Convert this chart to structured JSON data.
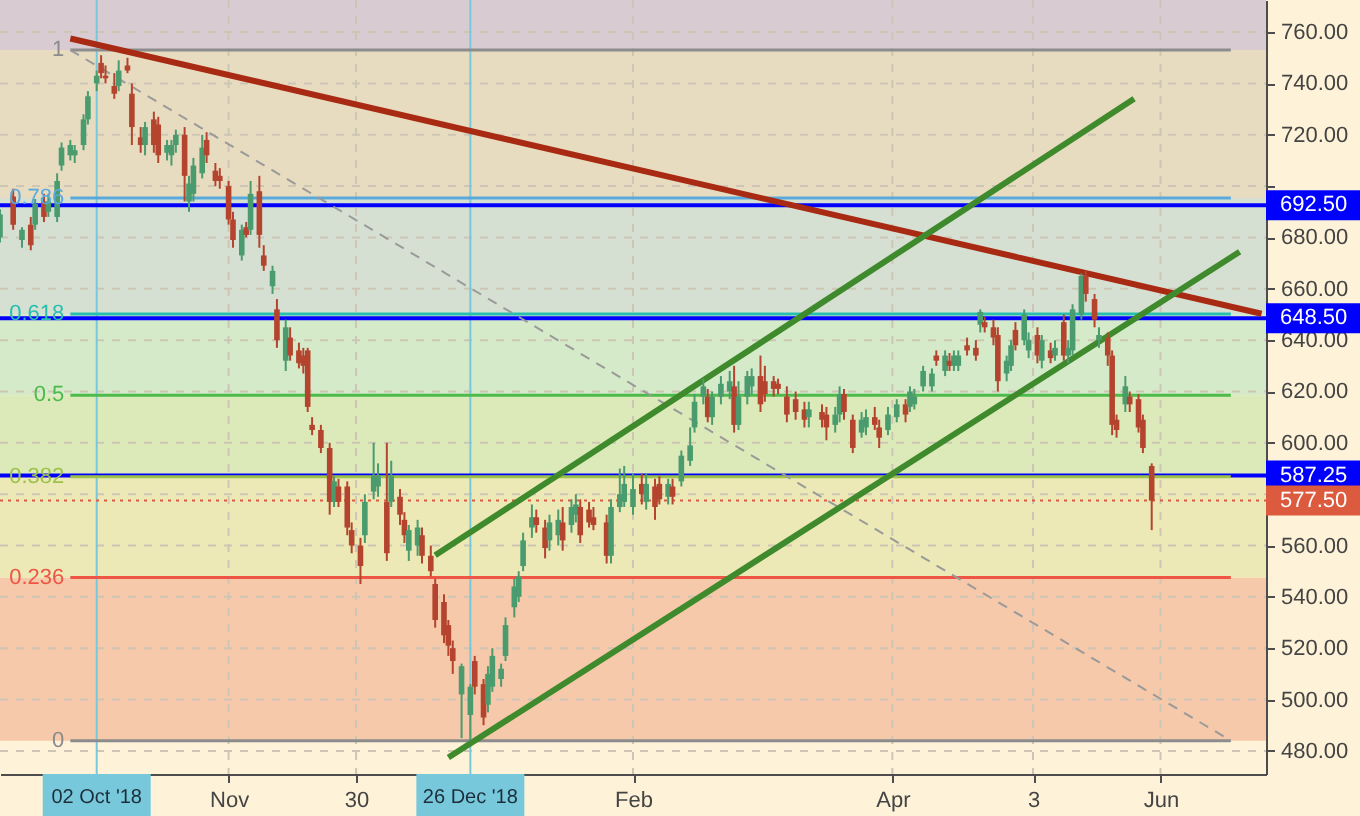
{
  "chart_data": {
    "type": "candlestick",
    "x": [
      "2018-09-10",
      "2018-09-13",
      "2018-09-15",
      "2018-09-17",
      "2018-09-18",
      "2018-09-20",
      "2018-09-21",
      "2018-09-23",
      "2018-09-24",
      "2018-09-26",
      "2018-09-27",
      "2018-09-29",
      "2018-09-30",
      "2018-10-02",
      "2018-10-03",
      "2018-10-04",
      "2018-10-06",
      "2018-10-07",
      "2018-10-09",
      "2018-10-10",
      "2018-10-12",
      "2018-10-13",
      "2018-10-15",
      "2018-10-16",
      "2018-10-18",
      "2018-10-19",
      "2018-10-20",
      "2018-10-22",
      "2018-10-23",
      "2018-10-24",
      "2018-10-26",
      "2018-10-27",
      "2018-10-29",
      "2018-10-30",
      "2018-11-01",
      "2018-11-02",
      "2018-11-04",
      "2018-11-05",
      "2018-11-06",
      "2018-11-08",
      "2018-11-09",
      "2018-11-11",
      "2018-11-12",
      "2018-11-14",
      "2018-11-15",
      "2018-11-17",
      "2018-11-18",
      "2018-11-19",
      "2018-11-20",
      "2018-11-22",
      "2018-11-24",
      "2018-11-25",
      "2018-11-26",
      "2018-11-28",
      "2018-11-29",
      "2018-12-01",
      "2018-12-02",
      "2018-12-04",
      "2018-12-05",
      "2018-12-07",
      "2018-12-08",
      "2018-12-10",
      "2018-12-11",
      "2018-12-12",
      "2018-12-14",
      "2018-12-15",
      "2018-12-17",
      "2018-12-18",
      "2018-12-20",
      "2018-12-21",
      "2018-12-22",
      "2018-12-24",
      "2018-12-26",
      "2018-12-27",
      "2018-12-29",
      "2018-12-30",
      "2018-12-31",
      "2019-01-02",
      "2019-01-03",
      "2019-01-05",
      "2019-01-06",
      "2019-01-07",
      "2019-01-09",
      "2019-01-10",
      "2019-01-12",
      "2019-01-13",
      "2019-01-15",
      "2019-01-16",
      "2019-01-18",
      "2019-01-19",
      "2019-01-20",
      "2019-01-22",
      "2019-01-23",
      "2019-01-26",
      "2019-01-27",
      "2019-01-29",
      "2019-01-30",
      "2019-02-01",
      "2019-02-03",
      "2019-02-04",
      "2019-02-06",
      "2019-02-07",
      "2019-02-09",
      "2019-02-10",
      "2019-02-12",
      "2019-02-14",
      "2019-02-15",
      "2019-02-17",
      "2019-02-18",
      "2019-02-19",
      "2019-02-21",
      "2019-02-23",
      "2019-02-24",
      "2019-02-25",
      "2019-02-27",
      "2019-02-28",
      "2019-03-02",
      "2019-03-03",
      "2019-03-05",
      "2019-03-06",
      "2019-03-08",
      "2019-03-10",
      "2019-03-12",
      "2019-03-13",
      "2019-03-16",
      "2019-03-17",
      "2019-03-19",
      "2019-03-20",
      "2019-03-21",
      "2019-03-23",
      "2019-03-25",
      "2019-03-26",
      "2019-03-28",
      "2019-03-29",
      "2019-03-31",
      "2019-04-02",
      "2019-04-04",
      "2019-04-05",
      "2019-04-06",
      "2019-04-08",
      "2019-04-10",
      "2019-04-11",
      "2019-04-13",
      "2019-04-14",
      "2019-04-15",
      "2019-04-16",
      "2019-04-18",
      "2019-04-20",
      "2019-04-21",
      "2019-04-22",
      "2019-04-24",
      "2019-04-25",
      "2019-04-27",
      "2019-04-28",
      "2019-04-29",
      "2019-05-01",
      "2019-05-02",
      "2019-05-04",
      "2019-05-05",
      "2019-05-07",
      "2019-05-08",
      "2019-05-10",
      "2019-05-11",
      "2019-05-12",
      "2019-05-14",
      "2019-05-15",
      "2019-05-17",
      "2019-05-18",
      "2019-05-20",
      "2019-05-21",
      "2019-05-22",
      "2019-05-24",
      "2019-05-25",
      "2019-05-27",
      "2019-05-28",
      "2019-05-30"
    ],
    "ohlc": [
      [
        680,
        691,
        678,
        689
      ],
      [
        696,
        699,
        683,
        685
      ],
      [
        679,
        684,
        676,
        683
      ],
      [
        685,
        688,
        675,
        677
      ],
      [
        685,
        695,
        683,
        693
      ],
      [
        694,
        697,
        686,
        688
      ],
      [
        690,
        697,
        688,
        694
      ],
      [
        688,
        705,
        686,
        702
      ],
      [
        708,
        717,
        706,
        715
      ],
      [
        712,
        718,
        710,
        716
      ],
      [
        712,
        716,
        709,
        714
      ],
      [
        716,
        728,
        714,
        726
      ],
      [
        726,
        737,
        724,
        735
      ],
      [
        740,
        745,
        737,
        743
      ],
      [
        748,
        751,
        742,
        744
      ],
      [
        743,
        747,
        740,
        742
      ],
      [
        739,
        744,
        734,
        736
      ],
      [
        739,
        749,
        737,
        745
      ],
      [
        747,
        750,
        744,
        745
      ],
      [
        736,
        740,
        716,
        723
      ],
      [
        719,
        723,
        713,
        716
      ],
      [
        716,
        725,
        712,
        723
      ],
      [
        726,
        729,
        713,
        716
      ],
      [
        724,
        727,
        709,
        712
      ],
      [
        713,
        718,
        710,
        716
      ],
      [
        712,
        718,
        708,
        716
      ],
      [
        716,
        722,
        713,
        720
      ],
      [
        720,
        723,
        694,
        704
      ],
      [
        694,
        704,
        690,
        701
      ],
      [
        697,
        711,
        694,
        708
      ],
      [
        705,
        720,
        703,
        715
      ],
      [
        718,
        721,
        709,
        712
      ],
      [
        706,
        709,
        700,
        702
      ],
      [
        704,
        707,
        699,
        702
      ],
      [
        700,
        702,
        685,
        687
      ],
      [
        687,
        690,
        676,
        679
      ],
      [
        673,
        685,
        671,
        683
      ],
      [
        684,
        686,
        680,
        681
      ],
      [
        683,
        702,
        681,
        697
      ],
      [
        698,
        704,
        676,
        681
      ],
      [
        673,
        677,
        667,
        669
      ],
      [
        661,
        669,
        658,
        667
      ],
      [
        652,
        656,
        637,
        640
      ],
      [
        632,
        648,
        628,
        645
      ],
      [
        641,
        645,
        632,
        634
      ],
      [
        636,
        639,
        629,
        631
      ],
      [
        634,
        637,
        627,
        630
      ],
      [
        636,
        637,
        612,
        614
      ],
      [
        607,
        610,
        603,
        605
      ],
      [
        605,
        607,
        596,
        598
      ],
      [
        598,
        600,
        572,
        577
      ],
      [
        577,
        587,
        575,
        585
      ],
      [
        583,
        586,
        575,
        577
      ],
      [
        583,
        585,
        564,
        567
      ],
      [
        566,
        569,
        557,
        560
      ],
      [
        560,
        563,
        545,
        552
      ],
      [
        564,
        580,
        561,
        577
      ],
      [
        581,
        600,
        578,
        587
      ],
      [
        583,
        592,
        579,
        587
      ],
      [
        577,
        600,
        554,
        557
      ],
      [
        577,
        593,
        575,
        587
      ],
      [
        579,
        582,
        568,
        572
      ],
      [
        570,
        573,
        561,
        564
      ],
      [
        558,
        568,
        554,
        566
      ],
      [
        560,
        570,
        556,
        567
      ],
      [
        564,
        567,
        553,
        556
      ],
      [
        556,
        560,
        548,
        550
      ],
      [
        545,
        547,
        528,
        531
      ],
      [
        538,
        541,
        522,
        525
      ],
      [
        529,
        531,
        517,
        521
      ],
      [
        520,
        523,
        510,
        515
      ],
      [
        502,
        514,
        485,
        513
      ],
      [
        494,
        506,
        484,
        505
      ],
      [
        515,
        517,
        502,
        505
      ],
      [
        506,
        508,
        490,
        493
      ],
      [
        498,
        513,
        495,
        510
      ],
      [
        505,
        520,
        503,
        517
      ],
      [
        508,
        514,
        505,
        512
      ],
      [
        517,
        532,
        515,
        529
      ],
      [
        536,
        547,
        532,
        544
      ],
      [
        540,
        550,
        538,
        548
      ],
      [
        552,
        565,
        550,
        562
      ],
      [
        567,
        576,
        563,
        571
      ],
      [
        571,
        574,
        565,
        568
      ],
      [
        567,
        570,
        555,
        559
      ],
      [
        562,
        572,
        558,
        569
      ],
      [
        564,
        574,
        560,
        570
      ],
      [
        569,
        575,
        558,
        562
      ],
      [
        568,
        578,
        565,
        575
      ],
      [
        572,
        580,
        569,
        576
      ],
      [
        575,
        578,
        561,
        564
      ],
      [
        574,
        577,
        567,
        569
      ],
      [
        571,
        575,
        566,
        568
      ],
      [
        569,
        572,
        553,
        556
      ],
      [
        556,
        578,
        553,
        575
      ],
      [
        575,
        590,
        573,
        580
      ],
      [
        577,
        591,
        575,
        584
      ],
      [
        575,
        588,
        572,
        582
      ],
      [
        584,
        588,
        576,
        580
      ],
      [
        577,
        588,
        574,
        584
      ],
      [
        583,
        586,
        570,
        575
      ],
      [
        584,
        587,
        576,
        578
      ],
      [
        579,
        586,
        576,
        584
      ],
      [
        583,
        586,
        576,
        579
      ],
      [
        585,
        597,
        583,
        595
      ],
      [
        593,
        606,
        591,
        599
      ],
      [
        606,
        619,
        604,
        616
      ],
      [
        618,
        625,
        615,
        622
      ],
      [
        618,
        621,
        608,
        610
      ],
      [
        610,
        620,
        607,
        618
      ],
      [
        618,
        626,
        615,
        623
      ],
      [
        620,
        628,
        617,
        624
      ],
      [
        622,
        630,
        604,
        607
      ],
      [
        607,
        624,
        605,
        618
      ],
      [
        618,
        628,
        615,
        626
      ],
      [
        622,
        629,
        619,
        626
      ],
      [
        626,
        634,
        612,
        615
      ],
      [
        624,
        630,
        616,
        619
      ],
      [
        624,
        626,
        618,
        621
      ],
      [
        623,
        625,
        619,
        621
      ],
      [
        618,
        622,
        608,
        611
      ],
      [
        617,
        620,
        609,
        612
      ],
      [
        613,
        616,
        606,
        609
      ],
      [
        610,
        616,
        606,
        613
      ],
      [
        612,
        615,
        606,
        609
      ],
      [
        611,
        614,
        601,
        606
      ],
      [
        607,
        614,
        604,
        611
      ],
      [
        611,
        622,
        608,
        619
      ],
      [
        619,
        621,
        609,
        612
      ],
      [
        609,
        611,
        596,
        598
      ],
      [
        604,
        612,
        602,
        609
      ],
      [
        606,
        613,
        603,
        610
      ],
      [
        610,
        614,
        605,
        607
      ],
      [
        606,
        609,
        598,
        602
      ],
      [
        605,
        614,
        603,
        611
      ],
      [
        610,
        617,
        608,
        615
      ],
      [
        615,
        617,
        608,
        611
      ],
      [
        614,
        622,
        612,
        620
      ],
      [
        615,
        621,
        613,
        618
      ],
      [
        622,
        630,
        620,
        628
      ],
      [
        622,
        629,
        620,
        627
      ],
      [
        634,
        636,
        630,
        632
      ],
      [
        628,
        636,
        626,
        634
      ],
      [
        632,
        635,
        628,
        630
      ],
      [
        630,
        636,
        628,
        634
      ],
      [
        630,
        636,
        628,
        634
      ],
      [
        638,
        641,
        634,
        636
      ],
      [
        637,
        640,
        632,
        634
      ],
      [
        646,
        652,
        643,
        651
      ],
      [
        647,
        649,
        643,
        645
      ],
      [
        645,
        648,
        638,
        641
      ],
      [
        642,
        645,
        620,
        624
      ],
      [
        627,
        634,
        624,
        632
      ],
      [
        630,
        640,
        628,
        638
      ],
      [
        644,
        647,
        636,
        638
      ],
      [
        640,
        652,
        638,
        650
      ],
      [
        636,
        643,
        633,
        640
      ],
      [
        642,
        645,
        631,
        634
      ],
      [
        632,
        642,
        629,
        640
      ],
      [
        636,
        639,
        631,
        633
      ],
      [
        634,
        640,
        632,
        637
      ],
      [
        647,
        650,
        632,
        634
      ],
      [
        634,
        640,
        631,
        637
      ],
      [
        636,
        654,
        634,
        652
      ],
      [
        650,
        666,
        648,
        665
      ],
      [
        665,
        667,
        655,
        658
      ],
      [
        656,
        658,
        645,
        648
      ],
      [
        640,
        645,
        637,
        642
      ],
      [
        641,
        643,
        630,
        634
      ],
      [
        634,
        636,
        603,
        607
      ],
      [
        609,
        611,
        602,
        605
      ],
      [
        615,
        626,
        612,
        622
      ],
      [
        618,
        620,
        612,
        615
      ],
      [
        617,
        619,
        604,
        606
      ],
      [
        609,
        611,
        596,
        598
      ],
      [
        591,
        592,
        566,
        577.5
      ]
    ],
    "colors": [
      "#4a9b6e",
      "#b4442e",
      "#4a9b6e",
      "#b4442e",
      "#4a9b6e",
      "#b4442e",
      "#4a9b6e",
      "#4a9b6e",
      "#4a9b6e",
      "#4a9b6e",
      "#4a9b6e",
      "#4a9b6e",
      "#4a9b6e",
      "#4a9b6e",
      "#b4442e",
      "#b4442e",
      "#b4442e",
      "#4a9b6e",
      "#b4442e",
      "#b4442e",
      "#b4442e",
      "#4a9b6e",
      "#b4442e",
      "#b4442e",
      "#4a9b6e",
      "#4a9b6e",
      "#4a9b6e",
      "#b4442e",
      "#4a9b6e",
      "#4a9b6e",
      "#4a9b6e",
      "#b4442e",
      "#b4442e",
      "#b4442e",
      "#b4442e",
      "#b4442e",
      "#4a9b6e",
      "#b4442e",
      "#4a9b6e",
      "#b4442e",
      "#b4442e",
      "#4a9b6e",
      "#b4442e",
      "#4a9b6e",
      "#b4442e",
      "#b4442e",
      "#b4442e",
      "#b4442e",
      "#b4442e",
      "#b4442e",
      "#b4442e",
      "#4a9b6e",
      "#b4442e",
      "#b4442e",
      "#b4442e",
      "#b4442e",
      "#4a9b6e",
      "#4a9b6e",
      "#4a9b6e",
      "#b4442e",
      "#4a9b6e",
      "#b4442e",
      "#b4442e",
      "#4a9b6e",
      "#4a9b6e",
      "#b4442e",
      "#b4442e",
      "#b4442e",
      "#b4442e",
      "#b4442e",
      "#b4442e",
      "#4a9b6e",
      "#4a9b6e",
      "#b4442e",
      "#b4442e",
      "#4a9b6e",
      "#4a9b6e",
      "#4a9b6e",
      "#4a9b6e",
      "#4a9b6e",
      "#4a9b6e",
      "#4a9b6e",
      "#4a9b6e",
      "#b4442e",
      "#b4442e",
      "#4a9b6e",
      "#4a9b6e",
      "#b4442e",
      "#4a9b6e",
      "#4a9b6e",
      "#b4442e",
      "#b4442e",
      "#b4442e",
      "#b4442e",
      "#4a9b6e",
      "#4a9b6e",
      "#4a9b6e",
      "#4a9b6e",
      "#b4442e",
      "#4a9b6e",
      "#b4442e",
      "#b4442e",
      "#4a9b6e",
      "#b4442e",
      "#4a9b6e",
      "#4a9b6e",
      "#4a9b6e",
      "#4a9b6e",
      "#b4442e",
      "#4a9b6e",
      "#4a9b6e",
      "#4a9b6e",
      "#b4442e",
      "#4a9b6e",
      "#4a9b6e",
      "#4a9b6e",
      "#b4442e",
      "#b4442e",
      "#b4442e",
      "#b4442e",
      "#b4442e",
      "#b4442e",
      "#b4442e",
      "#4a9b6e",
      "#b4442e",
      "#b4442e",
      "#4a9b6e",
      "#4a9b6e",
      "#b4442e",
      "#b4442e",
      "#4a9b6e",
      "#4a9b6e",
      "#b4442e",
      "#b4442e",
      "#4a9b6e",
      "#4a9b6e",
      "#b4442e",
      "#4a9b6e",
      "#4a9b6e",
      "#4a9b6e",
      "#4a9b6e",
      "#b4442e",
      "#4a9b6e",
      "#b4442e",
      "#4a9b6e",
      "#4a9b6e",
      "#b4442e",
      "#b4442e",
      "#4a9b6e",
      "#b4442e",
      "#b4442e",
      "#b4442e",
      "#4a9b6e",
      "#4a9b6e",
      "#b4442e",
      "#4a9b6e",
      "#4a9b6e",
      "#b4442e",
      "#4a9b6e",
      "#b4442e",
      "#4a9b6e",
      "#b4442e",
      "#4a9b6e",
      "#4a9b6e",
      "#4a9b6e",
      "#b4442e",
      "#b4442e",
      "#4a9b6e",
      "#b4442e",
      "#b4442e",
      "#b4442e",
      "#4a9b6e",
      "#b4442e",
      "#b4442e",
      "#b4442e",
      "#b4442e"
    ],
    "series": [
      {
        "type": "line",
        "name": "1",
        "x": [
          "2018-09-26",
          "2019-06-17"
        ],
        "values": [
          753,
          753
        ],
        "color": "#8c8c8c"
      },
      {
        "type": "line",
        "name": "0.786",
        "x": [
          "2018-09-26",
          "2019-06-17"
        ],
        "values": [
          695.4,
          695.4
        ],
        "color": "#5aa9dc"
      },
      {
        "type": "line",
        "name": "0.618",
        "x": [
          "2018-09-26",
          "2019-06-17"
        ],
        "values": [
          650.2,
          650.2
        ],
        "color": "#26bfb0"
      },
      {
        "type": "line",
        "name": "0.5",
        "x": [
          "2018-09-26",
          "2019-06-17"
        ],
        "values": [
          618.5,
          618.5
        ],
        "color": "#4cbb4c"
      },
      {
        "type": "line",
        "name": "0.382",
        "x": [
          "2018-09-26",
          "2019-06-17"
        ],
        "values": [
          586.8,
          586.8
        ],
        "color": "#9cc24a"
      },
      {
        "type": "line",
        "name": "0.236",
        "x": [
          "2018-09-26",
          "2019-06-17"
        ],
        "values": [
          547.5,
          547.5
        ],
        "color": "#ee5544"
      },
      {
        "type": "line",
        "name": "0",
        "x": [
          "2018-09-26",
          "2019-06-17"
        ],
        "values": [
          484,
          484
        ],
        "color": "#8c8c8c"
      },
      {
        "type": "line",
        "x": [
          "2018-09-26",
          "2019-06-17"
        ],
        "values": [
          753,
          484
        ],
        "color": "#9a9a9a",
        "line_style": "dashed"
      },
      {
        "type": "line",
        "x": [
          "2018-09-26",
          "2019-06-24"
        ],
        "values": [
          757.5,
          650.3
        ],
        "color": "#a82a12"
      },
      {
        "type": "line",
        "x": [
          "2018-12-18",
          "2019-05-26"
        ],
        "values": [
          556.2,
          734.0
        ],
        "color": "#3f8a2c"
      },
      {
        "type": "line",
        "x": [
          "2018-12-21",
          "2019-06-19"
        ],
        "values": [
          477.4,
          674.4
        ],
        "color": "#3f8a2c"
      }
    ],
    "bands": [
      {
        "axis": "y",
        "from": 484,
        "to": 547.5,
        "color": "#f5c9a9"
      },
      {
        "axis": "y",
        "from": 547.5,
        "to": 586.8,
        "color": "#ece9b6"
      },
      {
        "axis": "y",
        "from": 586.8,
        "to": 618.5,
        "color": "#dceab9"
      },
      {
        "axis": "y",
        "from": 618.5,
        "to": 650.2,
        "color": "#d5eac9"
      },
      {
        "axis": "y",
        "from": 650.2,
        "to": 695.4,
        "color": "#d6e0d2"
      },
      {
        "axis": "y",
        "from": 695.4,
        "to": 753,
        "color": "#e8dcc0"
      },
      {
        "axis": "y",
        "from": 753,
        "to": 772.5,
        "color": "#d8ccd2"
      }
    ],
    "ref_lines": [
      {
        "axis": "x",
        "value": "2018-10-02",
        "label": "02 Oct '18",
        "color": "#78c8dc"
      },
      {
        "axis": "x",
        "value": "2018-12-26",
        "label": "26 Dec '18",
        "color": "#78c8dc"
      },
      {
        "axis": "y",
        "value": 692.5,
        "label": "692.50",
        "color": "#0000ff"
      },
      {
        "axis": "y",
        "value": 648.5,
        "label": "648.50",
        "color": "#0000ff"
      },
      {
        "axis": "y",
        "value": 587.25,
        "label": "587.25",
        "color": "#0000ff"
      },
      {
        "axis": "y",
        "value": 577.5,
        "label": "577.50",
        "color": "#dc5a3e",
        "line_style": "dotted"
      }
    ],
    "xlim": [
      "2018-09-10",
      "2019-06-25"
    ],
    "xticks": [
      {
        "value": "2018-11-01",
        "label": "Nov"
      },
      {
        "value": "2018-11-30",
        "label": "30"
      },
      {
        "value": "2019-02-01",
        "label": "Feb"
      },
      {
        "value": "2019-04-01",
        "label": "Apr"
      },
      {
        "value": "2019-05-03",
        "label": "3"
      },
      {
        "value": "2019-06-01",
        "label": "Jun"
      }
    ],
    "ylim": [
      471,
      772.5
    ],
    "yticks": [
      {
        "value": 480,
        "label": "480.00"
      },
      {
        "value": 500,
        "label": "500.00"
      },
      {
        "value": 520,
        "label": "520.00"
      },
      {
        "value": 540,
        "label": "540.00"
      },
      {
        "value": 560,
        "label": "560.00"
      },
      {
        "value": 580,
        "label": null
      },
      {
        "value": 600,
        "label": "600.00"
      },
      {
        "value": 620,
        "label": "620.00"
      },
      {
        "value": 640,
        "label": "640.00"
      },
      {
        "value": 660,
        "label": "660.00"
      },
      {
        "value": 680,
        "label": "680.00"
      },
      {
        "value": 700,
        "label": null
      },
      {
        "value": 720,
        "label": "720.00"
      },
      {
        "value": 740,
        "label": "740.00"
      },
      {
        "value": 760,
        "label": "760.00"
      }
    ],
    "grid": true
  }
}
